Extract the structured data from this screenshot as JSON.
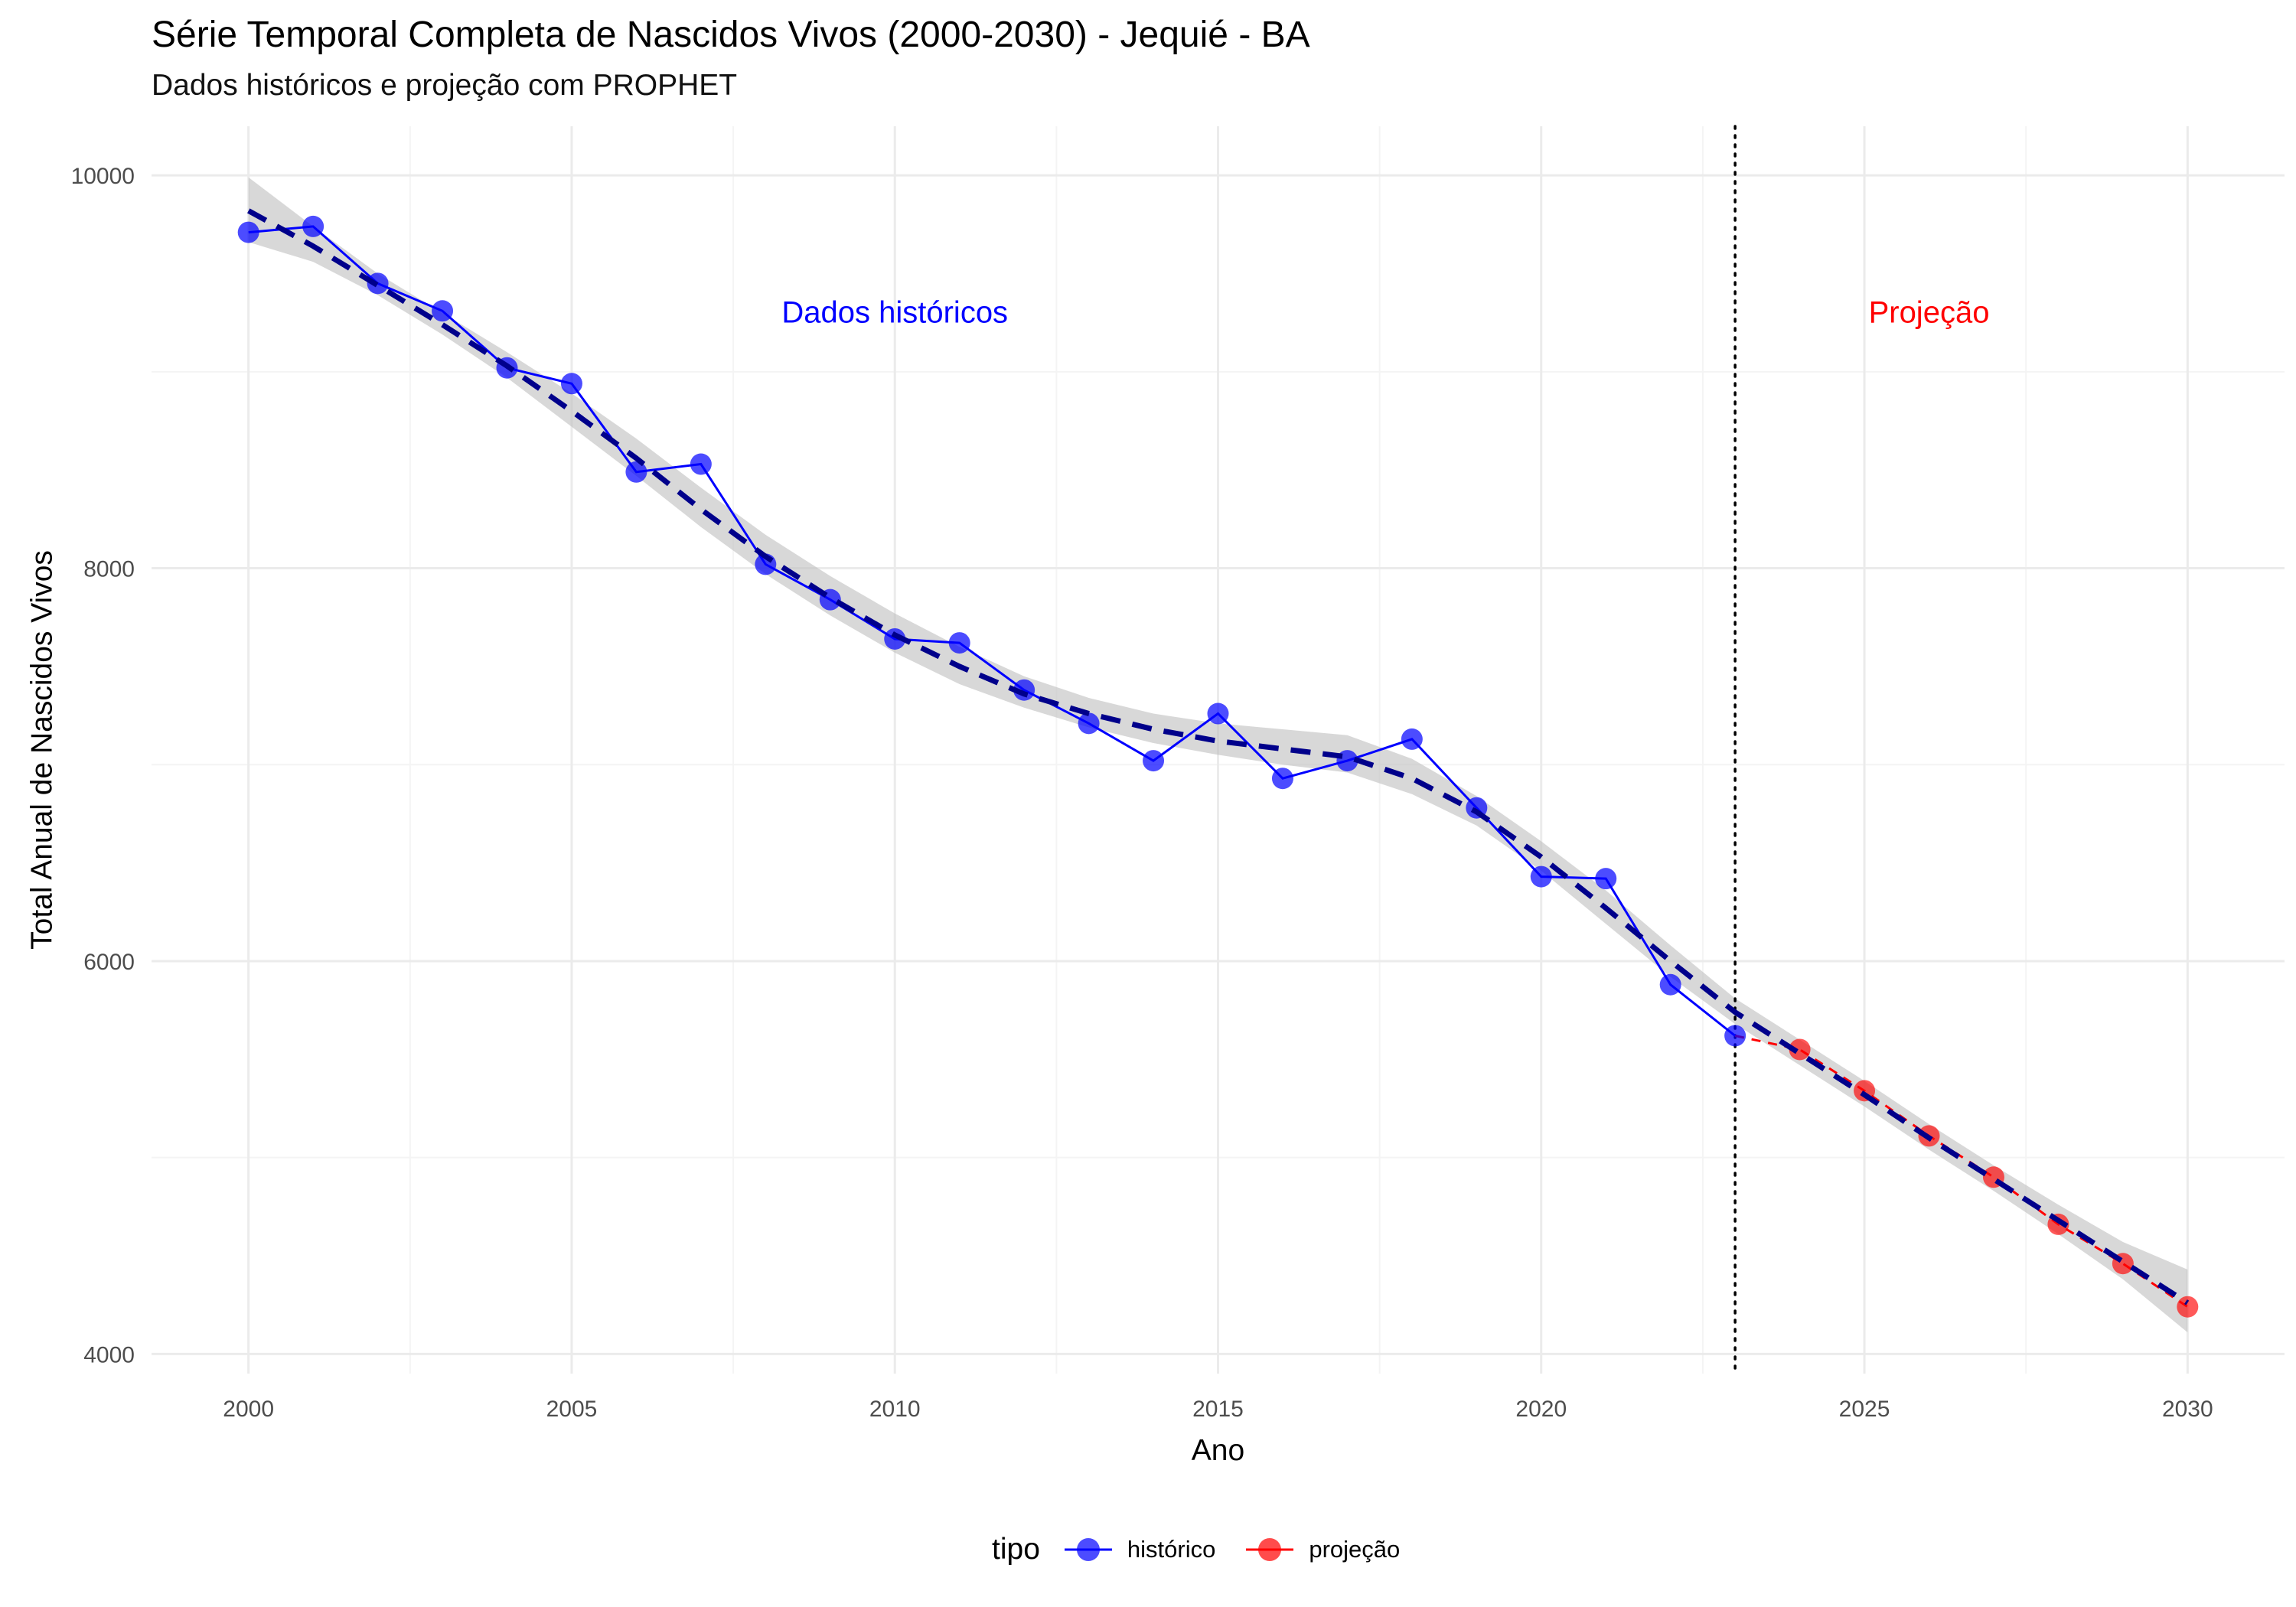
{
  "title": "Série Temporal Completa de Nascidos Vivos (2000-2030) -  Jequié - BA",
  "subtitle": "Dados históricos e projeção com PROPHET",
  "colors": {
    "historico": "#0000ff",
    "projecao": "#ff0000",
    "trend": "#00008b",
    "band": "#bebebe",
    "grid_major": "#ebebeb",
    "grid_minor": "#f4f4f4",
    "cutoff_line": "#000000"
  },
  "legend": {
    "title": "tipo",
    "position": "bottom",
    "items": [
      {
        "key": "historico",
        "label": "histórico"
      },
      {
        "key": "projecao",
        "label": "projeção"
      }
    ]
  },
  "chart_data": {
    "type": "line",
    "xlabel": "Ano",
    "ylabel": "Total Anual de Nascidos Vivos",
    "xlim": [
      1998.5,
      2031.5
    ],
    "ylim": [
      3900,
      10250
    ],
    "x_ticks": [
      2000,
      2005,
      2010,
      2015,
      2020,
      2025,
      2030
    ],
    "y_ticks": [
      4000,
      6000,
      8000,
      10000
    ],
    "grid": true,
    "cutoff_year": 2023,
    "series": [
      {
        "name": "histórico",
        "key": "historico",
        "style": "solid line with points",
        "x": [
          2000,
          2001,
          2002,
          2003,
          2004,
          2005,
          2006,
          2007,
          2008,
          2009,
          2010,
          2011,
          2012,
          2013,
          2014,
          2015,
          2016,
          2017,
          2018,
          2019,
          2020,
          2021,
          2022,
          2023
        ],
        "y": [
          9710,
          9740,
          9450,
          9310,
          9020,
          8940,
          8490,
          8530,
          8020,
          7840,
          7640,
          7620,
          7380,
          7210,
          7020,
          7260,
          6930,
          7020,
          7130,
          6780,
          6430,
          6420,
          5880,
          5620
        ]
      },
      {
        "name": "projeção",
        "key": "projecao",
        "style": "dashed line with points",
        "x": [
          2023,
          2024,
          2025,
          2026,
          2027,
          2028,
          2029,
          2030
        ],
        "y": [
          5620,
          5550,
          5340,
          5110,
          4900,
          4660,
          4460,
          4240
        ]
      },
      {
        "key": "trend",
        "style": "thick dashed fitted line",
        "x": [
          2000,
          2001,
          2002,
          2003,
          2004,
          2005,
          2006,
          2007,
          2008,
          2009,
          2010,
          2011,
          2012,
          2013,
          2014,
          2015,
          2016,
          2017,
          2018,
          2019,
          2020,
          2021,
          2022,
          2023,
          2024,
          2025,
          2026,
          2027,
          2028,
          2029,
          2030
        ],
        "y": [
          9820,
          9640,
          9440,
          9240,
          9030,
          8800,
          8560,
          8300,
          8060,
          7850,
          7660,
          7500,
          7360,
          7260,
          7180,
          7120,
          7080,
          7040,
          6930,
          6760,
          6530,
          6270,
          6000,
          5740,
          5530,
          5320,
          5100,
          4890,
          4680,
          4470,
          4260
        ]
      }
    ],
    "confidence_band": {
      "x": [
        2000,
        2001,
        2002,
        2003,
        2004,
        2005,
        2006,
        2007,
        2008,
        2009,
        2010,
        2011,
        2012,
        2013,
        2014,
        2015,
        2016,
        2017,
        2018,
        2019,
        2020,
        2021,
        2022,
        2023,
        2024,
        2025,
        2026,
        2027,
        2028,
        2029,
        2030
      ],
      "lower": [
        9660,
        9560,
        9390,
        9190,
        8970,
        8720,
        8470,
        8210,
        7970,
        7760,
        7570,
        7410,
        7290,
        7190,
        7110,
        7050,
        7000,
        6960,
        6850,
        6690,
        6460,
        6190,
        5920,
        5680,
        5470,
        5260,
        5040,
        4830,
        4610,
        4380,
        4110
      ],
      "upper": [
        9990,
        9740,
        9500,
        9300,
        9100,
        8890,
        8660,
        8410,
        8170,
        7960,
        7770,
        7600,
        7450,
        7340,
        7260,
        7210,
        7180,
        7150,
        7030,
        6840,
        6610,
        6360,
        6080,
        5810,
        5600,
        5390,
        5170,
        4960,
        4760,
        4570,
        4430
      ]
    },
    "annotations": [
      {
        "text": "Dados históricos",
        "x": 2010,
        "y": 9250,
        "color": "#0000ff"
      },
      {
        "text": "Projeção",
        "x": 2026,
        "y": 9250,
        "color": "#ff0000"
      }
    ]
  }
}
